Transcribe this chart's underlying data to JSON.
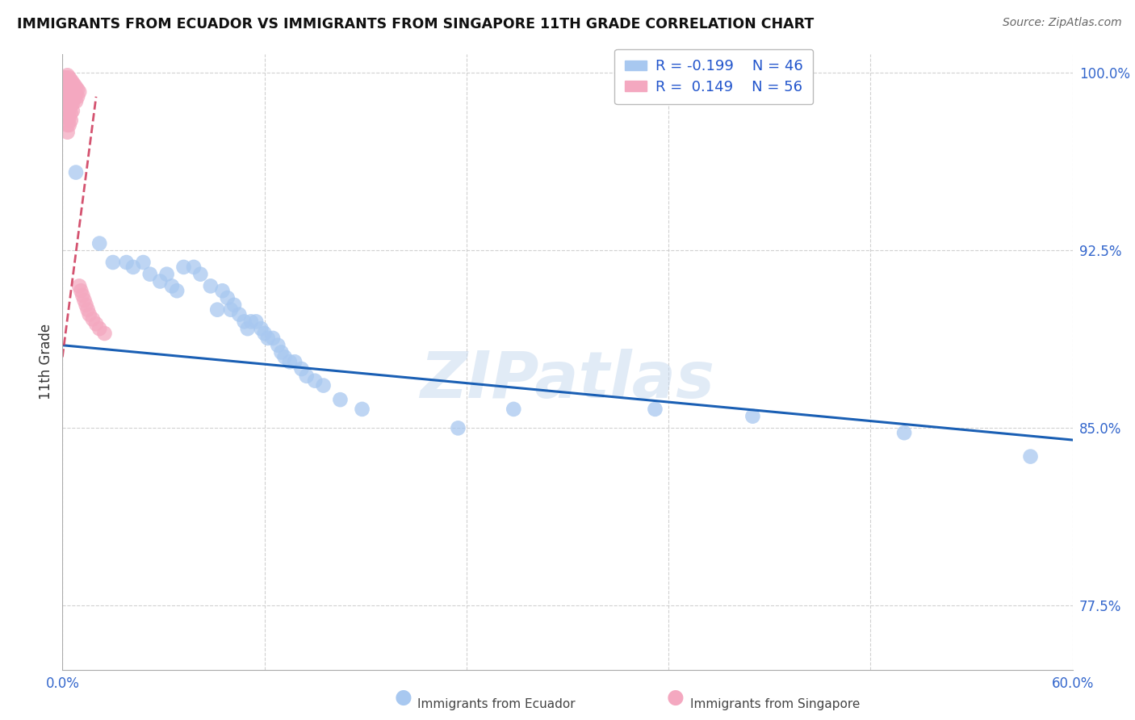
{
  "title": "IMMIGRANTS FROM ECUADOR VS IMMIGRANTS FROM SINGAPORE 11TH GRADE CORRELATION CHART",
  "source": "Source: ZipAtlas.com",
  "ylabel_label": "11th Grade",
  "watermark": "ZIPatlas",
  "xlim": [
    0.0,
    0.6
  ],
  "ylim": [
    0.748,
    1.008
  ],
  "xtick_vals": [
    0.0,
    0.12,
    0.24,
    0.36,
    0.48,
    0.6
  ],
  "xtick_labels": [
    "0.0%",
    "",
    "",
    "",
    "",
    "60.0%"
  ],
  "ytick_vals": [
    0.775,
    0.85,
    0.925,
    1.0
  ],
  "ytick_labels": [
    "77.5%",
    "85.0%",
    "92.5%",
    "100.0%"
  ],
  "r_ecuador": "-0.199",
  "n_ecuador": "46",
  "r_singapore": "0.149",
  "n_singapore": "56",
  "ecuador_color": "#a8c8f0",
  "singapore_color": "#f4a8c0",
  "trendline_ecuador_color": "#1a5fb4",
  "trendline_singapore_color": "#d04060",
  "background_color": "#ffffff",
  "grid_color": "#cccccc",
  "ecuador_x": [
    0.008,
    0.022,
    0.03,
    0.038,
    0.042,
    0.048,
    0.052,
    0.058,
    0.062,
    0.065,
    0.068,
    0.072,
    0.078,
    0.082,
    0.088,
    0.092,
    0.095,
    0.098,
    0.1,
    0.102,
    0.105,
    0.108,
    0.11,
    0.112,
    0.115,
    0.118,
    0.12,
    0.122,
    0.125,
    0.128,
    0.13,
    0.132,
    0.135,
    0.138,
    0.142,
    0.145,
    0.15,
    0.155,
    0.165,
    0.178,
    0.235,
    0.268,
    0.352,
    0.41,
    0.5,
    0.575
  ],
  "ecuador_y": [
    0.958,
    0.928,
    0.92,
    0.92,
    0.918,
    0.92,
    0.915,
    0.912,
    0.915,
    0.91,
    0.908,
    0.918,
    0.918,
    0.915,
    0.91,
    0.9,
    0.908,
    0.905,
    0.9,
    0.902,
    0.898,
    0.895,
    0.892,
    0.895,
    0.895,
    0.892,
    0.89,
    0.888,
    0.888,
    0.885,
    0.882,
    0.88,
    0.878,
    0.878,
    0.875,
    0.872,
    0.87,
    0.868,
    0.862,
    0.858,
    0.85,
    0.858,
    0.858,
    0.855,
    0.848,
    0.838
  ],
  "singapore_x": [
    0.001,
    0.001,
    0.002,
    0.002,
    0.002,
    0.002,
    0.002,
    0.003,
    0.003,
    0.003,
    0.003,
    0.003,
    0.003,
    0.003,
    0.003,
    0.003,
    0.004,
    0.004,
    0.004,
    0.004,
    0.004,
    0.004,
    0.004,
    0.004,
    0.005,
    0.005,
    0.005,
    0.005,
    0.005,
    0.005,
    0.005,
    0.006,
    0.006,
    0.006,
    0.006,
    0.006,
    0.007,
    0.007,
    0.007,
    0.008,
    0.008,
    0.008,
    0.009,
    0.009,
    0.01,
    0.01,
    0.011,
    0.012,
    0.013,
    0.014,
    0.015,
    0.016,
    0.018,
    0.02,
    0.022,
    0.025
  ],
  "singapore_y": [
    0.998,
    0.995,
    0.998,
    0.996,
    0.993,
    0.99,
    0.988,
    0.999,
    0.996,
    0.993,
    0.99,
    0.987,
    0.984,
    0.981,
    0.978,
    0.975,
    0.998,
    0.996,
    0.993,
    0.99,
    0.987,
    0.984,
    0.981,
    0.978,
    0.997,
    0.995,
    0.992,
    0.989,
    0.986,
    0.983,
    0.98,
    0.996,
    0.993,
    0.99,
    0.987,
    0.984,
    0.995,
    0.992,
    0.989,
    0.994,
    0.991,
    0.988,
    0.993,
    0.99,
    0.992,
    0.91,
    0.908,
    0.906,
    0.904,
    0.902,
    0.9,
    0.898,
    0.896,
    0.894,
    0.892,
    0.89
  ],
  "trendline_sg_x0": 0.0,
  "trendline_sg_x1": 0.02,
  "trendline_eq_x0": 0.0,
  "trendline_eq_x1": 0.6
}
